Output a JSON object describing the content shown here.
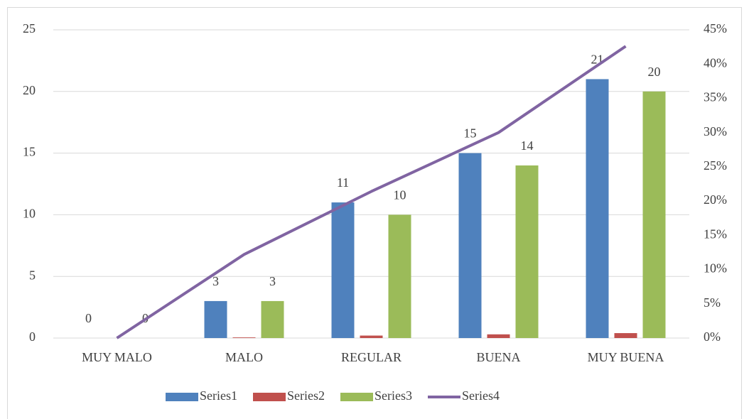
{
  "chart_data": {
    "type": "bar",
    "categories": [
      "MUY MALO",
      "MALO",
      "REGULAR",
      "BUENA",
      "MUY BUENA"
    ],
    "series": [
      {
        "name": "Series1",
        "color": "#4f81bd",
        "type": "bar",
        "values": [
          0,
          3,
          11,
          15,
          21
        ],
        "labels": true
      },
      {
        "name": "Series2",
        "color": "#c0504d",
        "type": "bar",
        "values": [
          0,
          0.05,
          0.2,
          0.3,
          0.4
        ],
        "labels": false
      },
      {
        "name": "Series3",
        "color": "#9bbb59",
        "type": "bar",
        "values": [
          0,
          3,
          10,
          14,
          20
        ],
        "labels": true
      },
      {
        "name": "Series4",
        "color": "#8064a2",
        "type": "line",
        "axis": "y2",
        "values": [
          0,
          12.2,
          21.4,
          30.0,
          42.6
        ]
      }
    ],
    "ylim": [
      0,
      25
    ],
    "yticks": [
      0,
      5,
      10,
      15,
      20,
      25
    ],
    "y2lim": [
      0,
      45
    ],
    "y2ticks": [
      {
        "value": 0,
        "label": "0%"
      },
      {
        "value": 5,
        "label": "5%"
      },
      {
        "value": 10,
        "label": "10%"
      },
      {
        "value": 15,
        "label": "15%"
      },
      {
        "value": 20,
        "label": "20%"
      },
      {
        "value": 25,
        "label": "25%"
      },
      {
        "value": 30,
        "label": "30%"
      },
      {
        "value": 35,
        "label": "35%"
      },
      {
        "value": 40,
        "label": "40%"
      },
      {
        "value": 45,
        "label": "45%"
      }
    ],
    "grid": true,
    "legend": "bottom"
  }
}
